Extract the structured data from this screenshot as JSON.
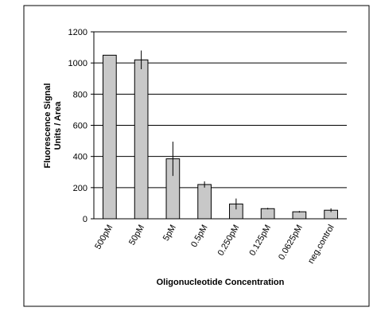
{
  "chart_data": {
    "type": "bar",
    "title": "",
    "categories": [
      "500pM",
      "50pM",
      "5pM",
      "0.5pM",
      "0.250pM",
      "0.125pM",
      "0.0625pM",
      "neg.control"
    ],
    "values": [
      1050,
      1020,
      385,
      220,
      95,
      65,
      45,
      55
    ],
    "error": [
      0,
      60,
      110,
      20,
      35,
      5,
      5,
      12
    ],
    "xlabel": "Oligonucleotide Concentration",
    "ylabel": [
      "Fluorescence Signal",
      "Units / Area"
    ],
    "ylim": [
      0,
      1200
    ],
    "yticks": [
      0,
      200,
      400,
      600,
      800,
      1000,
      1200
    ],
    "grid": true,
    "legend": "none",
    "colors": {
      "bar_fill": "#c8c8c8",
      "bar_stroke": "#000000",
      "grid": "#000000",
      "frame": "#000000"
    }
  }
}
